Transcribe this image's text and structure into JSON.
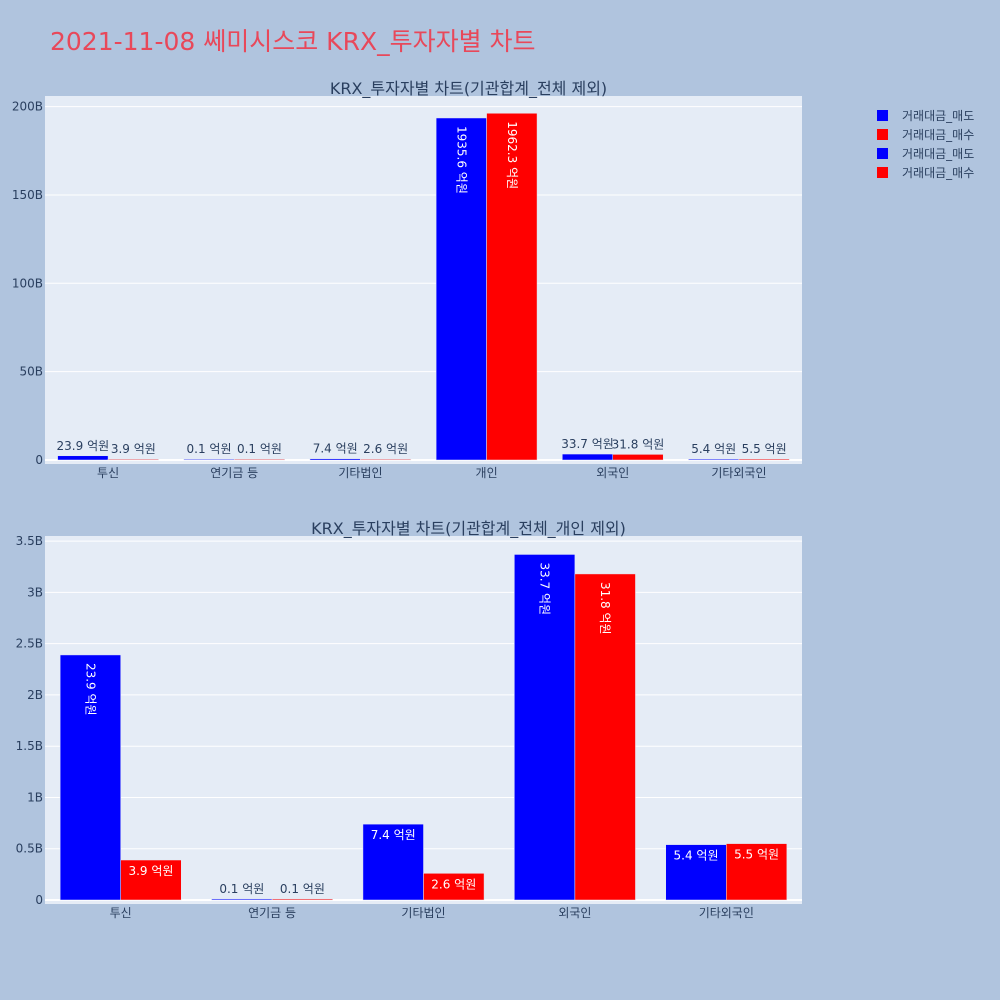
{
  "title": "2021-11-08 쎄미시스코 KRX_투자자별 차트",
  "colors": {
    "sell": "#0000ff",
    "buy": "#ff0000",
    "plot_bg": "#e5ecf6",
    "paper_bg": "#b0c4de",
    "title": "#e8485a"
  },
  "legend": {
    "placement": "top-right",
    "items": [
      {
        "label": "거래대금_매도",
        "color": "#0000ff"
      },
      {
        "label": "거래대금_매수",
        "color": "#ff0000"
      },
      {
        "label": "거래대금_매도",
        "color": "#0000ff"
      },
      {
        "label": "거래대금_매수",
        "color": "#ff0000"
      }
    ]
  },
  "chart_data": [
    {
      "type": "bar",
      "title": "KRX_투자자별 차트(기관합계_전체 제외)",
      "categories": [
        "투신",
        "연기금 등",
        "기타법인",
        "개인",
        "외국인",
        "기타외국인"
      ],
      "series": [
        {
          "name": "거래대금_매도",
          "values": [
            2390000000,
            10000000,
            740000000,
            193560000000,
            3370000000,
            540000000
          ],
          "labels": [
            "23.9 억원",
            "0.1 억원",
            "7.4 억원",
            "1935.6 억원",
            "33.7 억원",
            "5.4 억원"
          ]
        },
        {
          "name": "거래대금_매수",
          "values": [
            390000000,
            10000000,
            260000000,
            196230000000,
            3180000000,
            550000000
          ],
          "labels": [
            "3.9 억원",
            "0.1 억원",
            "2.6 억원",
            "1962.3 억원",
            "31.8 억원",
            "5.5 억원"
          ]
        }
      ],
      "ylim": [
        0,
        206000000000
      ],
      "yticks": [
        0,
        50000000000,
        100000000000,
        150000000000,
        200000000000
      ],
      "yticklabels": [
        "0",
        "50B",
        "100B",
        "150B",
        "200B"
      ],
      "grid": true
    },
    {
      "type": "bar",
      "title": "KRX_투자자별 차트(기관합계_전체_개인 제외)",
      "categories": [
        "투신",
        "연기금 등",
        "기타법인",
        "외국인",
        "기타외국인"
      ],
      "series": [
        {
          "name": "거래대금_매도",
          "values": [
            2390000000,
            10000000,
            740000000,
            3370000000,
            540000000
          ],
          "labels": [
            "23.9 억원",
            "0.1 억원",
            "7.4 억원",
            "33.7 억원",
            "5.4 억원"
          ]
        },
        {
          "name": "거래대금_매수",
          "values": [
            390000000,
            10000000,
            260000000,
            3180000000,
            550000000
          ],
          "labels": [
            "3.9 억원",
            "0.1 억원",
            "2.6 억원",
            "31.8 억원",
            "5.5 억원"
          ]
        }
      ],
      "ylim": [
        0,
        3550000000
      ],
      "yticks": [
        0,
        500000000,
        1000000000,
        1500000000,
        2000000000,
        2500000000,
        3000000000,
        3500000000
      ],
      "yticklabels": [
        "0",
        "0.5B",
        "1B",
        "1.5B",
        "2B",
        "2.5B",
        "3B",
        "3.5B"
      ],
      "grid": true
    }
  ]
}
